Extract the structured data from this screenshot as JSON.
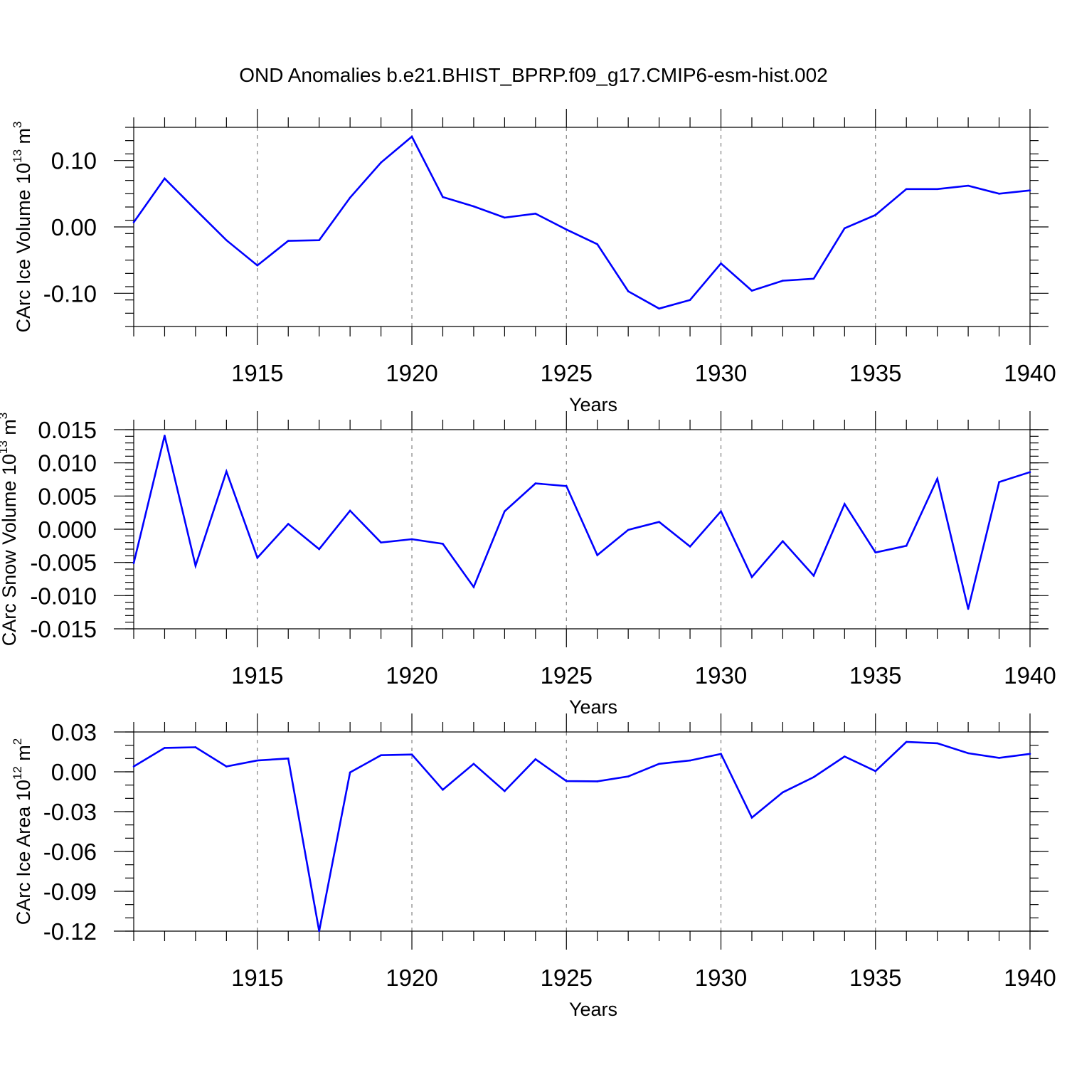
{
  "title": "OND Anomalies b.e21.BHIST_BPRP.f09_g17.CMIP6-esm-hist.002",
  "colors": {
    "series": "#0000ff",
    "axis": "#000000",
    "grid": "#808080"
  },
  "chart_data": [
    {
      "type": "line",
      "ylabel": {
        "main": "CArc Ice Volume 10",
        "exp": "13",
        "unit": " m",
        "unit_exp": "3"
      },
      "xlabel": "Years",
      "xlim": [
        1911,
        1940
      ],
      "ylim": [
        -0.15,
        0.15
      ],
      "yticks": [
        {
          "v": 0.1,
          "label": "0.10"
        },
        {
          "v": 0.0,
          "label": "0.00"
        },
        {
          "v": -0.1,
          "label": "-0.10"
        }
      ],
      "yminor": 0.02,
      "xticks": [
        1915,
        1920,
        1925,
        1930,
        1935,
        1940
      ],
      "gridlines": [
        1915,
        1920,
        1925,
        1930,
        1935
      ],
      "x": [
        1911,
        1912,
        1913,
        1914,
        1915,
        1916,
        1917,
        1918,
        1919,
        1920,
        1921,
        1922,
        1923,
        1924,
        1925,
        1926,
        1927,
        1928,
        1929,
        1930,
        1931,
        1932,
        1933,
        1934,
        1935,
        1936,
        1937,
        1938,
        1939,
        1940
      ],
      "values": [
        0.007,
        0.073,
        0.026,
        -0.02,
        -0.058,
        -0.021,
        -0.02,
        0.044,
        0.097,
        0.136,
        0.045,
        0.031,
        0.014,
        0.02,
        -0.004,
        -0.026,
        -0.097,
        -0.123,
        -0.11,
        -0.055,
        -0.096,
        -0.081,
        -0.078,
        -0.002,
        0.018,
        0.057,
        0.057,
        0.062,
        0.05,
        0.055
      ]
    },
    {
      "type": "line",
      "ylabel": {
        "main": "CArc Snow Volume 10",
        "exp": "13",
        "unit": " m",
        "unit_exp": "3"
      },
      "xlabel": "Years",
      "xlim": [
        1911,
        1940
      ],
      "ylim": [
        -0.015,
        0.015
      ],
      "yticks": [
        {
          "v": 0.015,
          "label": "0.015"
        },
        {
          "v": 0.01,
          "label": "0.010"
        },
        {
          "v": 0.005,
          "label": "0.005"
        },
        {
          "v": 0.0,
          "label": "0.000"
        },
        {
          "v": -0.005,
          "label": "-0.005"
        },
        {
          "v": -0.01,
          "label": "-0.010"
        },
        {
          "v": -0.015,
          "label": "-0.015"
        }
      ],
      "yminor": 0.001,
      "xticks": [
        1915,
        1920,
        1925,
        1930,
        1935,
        1940
      ],
      "gridlines": [
        1915,
        1920,
        1925,
        1930,
        1935
      ],
      "x": [
        1911,
        1912,
        1913,
        1914,
        1915,
        1916,
        1917,
        1918,
        1919,
        1920,
        1921,
        1922,
        1923,
        1924,
        1925,
        1926,
        1927,
        1928,
        1929,
        1930,
        1931,
        1932,
        1933,
        1934,
        1935,
        1936,
        1937,
        1938,
        1939,
        1940
      ],
      "values": [
        -0.0051,
        0.0141,
        -0.0055,
        0.0087,
        -0.0043,
        0.0008,
        -0.003,
        0.0028,
        -0.002,
        -0.0015,
        -0.0022,
        -0.0087,
        0.0027,
        0.0069,
        0.0065,
        -0.0039,
        -0.0001,
        0.0011,
        -0.0026,
        0.0027,
        -0.0072,
        -0.0018,
        -0.007,
        0.0038,
        -0.0035,
        -0.0025,
        0.0076,
        -0.012,
        0.0071,
        0.0086
      ]
    },
    {
      "type": "line",
      "ylabel": {
        "main": "CArc Ice Area 10",
        "exp": "12",
        "unit": " m",
        "unit_exp": "2"
      },
      "xlabel": "Years",
      "xlim": [
        1911,
        1940
      ],
      "ylim": [
        -0.12,
        0.03
      ],
      "yticks": [
        {
          "v": 0.03,
          "label": "0.03"
        },
        {
          "v": 0.0,
          "label": "0.00"
        },
        {
          "v": -0.03,
          "label": "-0.03"
        },
        {
          "v": -0.06,
          "label": "-0.06"
        },
        {
          "v": -0.09,
          "label": "-0.09"
        },
        {
          "v": -0.12,
          "label": "-0.12"
        }
      ],
      "yminor": 0.01,
      "xticks": [
        1915,
        1920,
        1925,
        1930,
        1935,
        1940
      ],
      "gridlines": [
        1915,
        1920,
        1925,
        1930,
        1935
      ],
      "x": [
        1911,
        1912,
        1913,
        1914,
        1915,
        1916,
        1917,
        1918,
        1919,
        1920,
        1921,
        1922,
        1923,
        1924,
        1925,
        1926,
        1927,
        1928,
        1929,
        1930,
        1931,
        1932,
        1933,
        1934,
        1935,
        1936,
        1937,
        1938,
        1939,
        1940
      ],
      "values": [
        0.004,
        0.018,
        0.0185,
        0.004,
        0.0085,
        0.01,
        -0.12,
        -0.0005,
        0.0125,
        0.013,
        -0.0135,
        0.006,
        -0.0145,
        0.0095,
        -0.007,
        -0.0072,
        -0.0035,
        0.006,
        0.0085,
        0.0135,
        -0.0345,
        -0.0155,
        -0.004,
        0.0115,
        0.0005,
        0.0225,
        0.0215,
        0.014,
        0.0105,
        0.0135
      ]
    }
  ]
}
